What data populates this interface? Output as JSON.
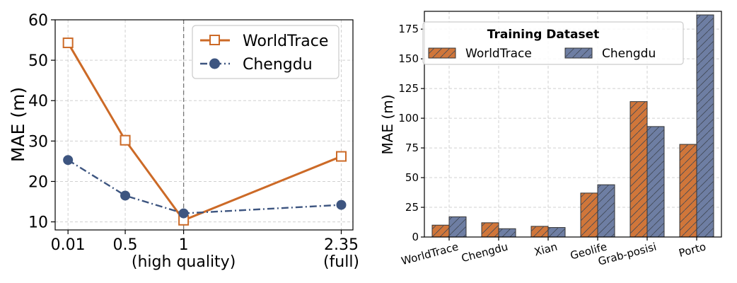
{
  "colors": {
    "worldtrace": "#d0763a",
    "worldtrace_line": "#cc6a27",
    "chengdu": "#6e7ea3",
    "chengdu_line": "#3d5580"
  },
  "chart_data": [
    {
      "type": "line",
      "title": "",
      "xlabel": "",
      "ylabel": "MAE (m)",
      "xlim": [
        -0.1,
        2.45
      ],
      "ylim": [
        8,
        60
      ],
      "yticks": [
        10,
        20,
        30,
        40,
        50,
        60
      ],
      "xticks": [
        {
          "value": 0.01,
          "label": "0.01",
          "sublabel": ""
        },
        {
          "value": 0.5,
          "label": "0.5",
          "sublabel": ""
        },
        {
          "value": 1,
          "label": "1",
          "sublabel": "(high quality)"
        },
        {
          "value": 2.35,
          "label": "2.35",
          "sublabel": "(full)"
        }
      ],
      "vline": 1,
      "legend_position": "upper-right",
      "series": [
        {
          "name": "WorldTrace",
          "marker": "square",
          "style": "solid",
          "x": [
            0.01,
            0.5,
            1,
            2.35
          ],
          "values": [
            54.3,
            30.2,
            10.4,
            26.2
          ]
        },
        {
          "name": "Chengdu",
          "marker": "circle",
          "style": "dashdot",
          "x": [
            0.01,
            0.5,
            1,
            2.35
          ],
          "values": [
            25.3,
            16.5,
            12.1,
            14.2
          ]
        }
      ]
    },
    {
      "type": "bar",
      "title": "",
      "xlabel": "",
      "ylabel": "MAE (m)",
      "ylim": [
        0,
        190
      ],
      "yticks": [
        0,
        25,
        50,
        75,
        100,
        125,
        150,
        175
      ],
      "categories": [
        "WorldTrace",
        "Chengdu",
        "Xian",
        "Geolife",
        "Grab-posisi",
        "Porto"
      ],
      "legend_title": "Training Dataset",
      "legend_position": "upper-left",
      "series": [
        {
          "name": "WorldTrace",
          "values": [
            10,
            12,
            9,
            37,
            114,
            78
          ]
        },
        {
          "name": "Chengdu",
          "values": [
            17,
            7,
            8,
            44,
            93,
            187
          ]
        }
      ]
    }
  ]
}
